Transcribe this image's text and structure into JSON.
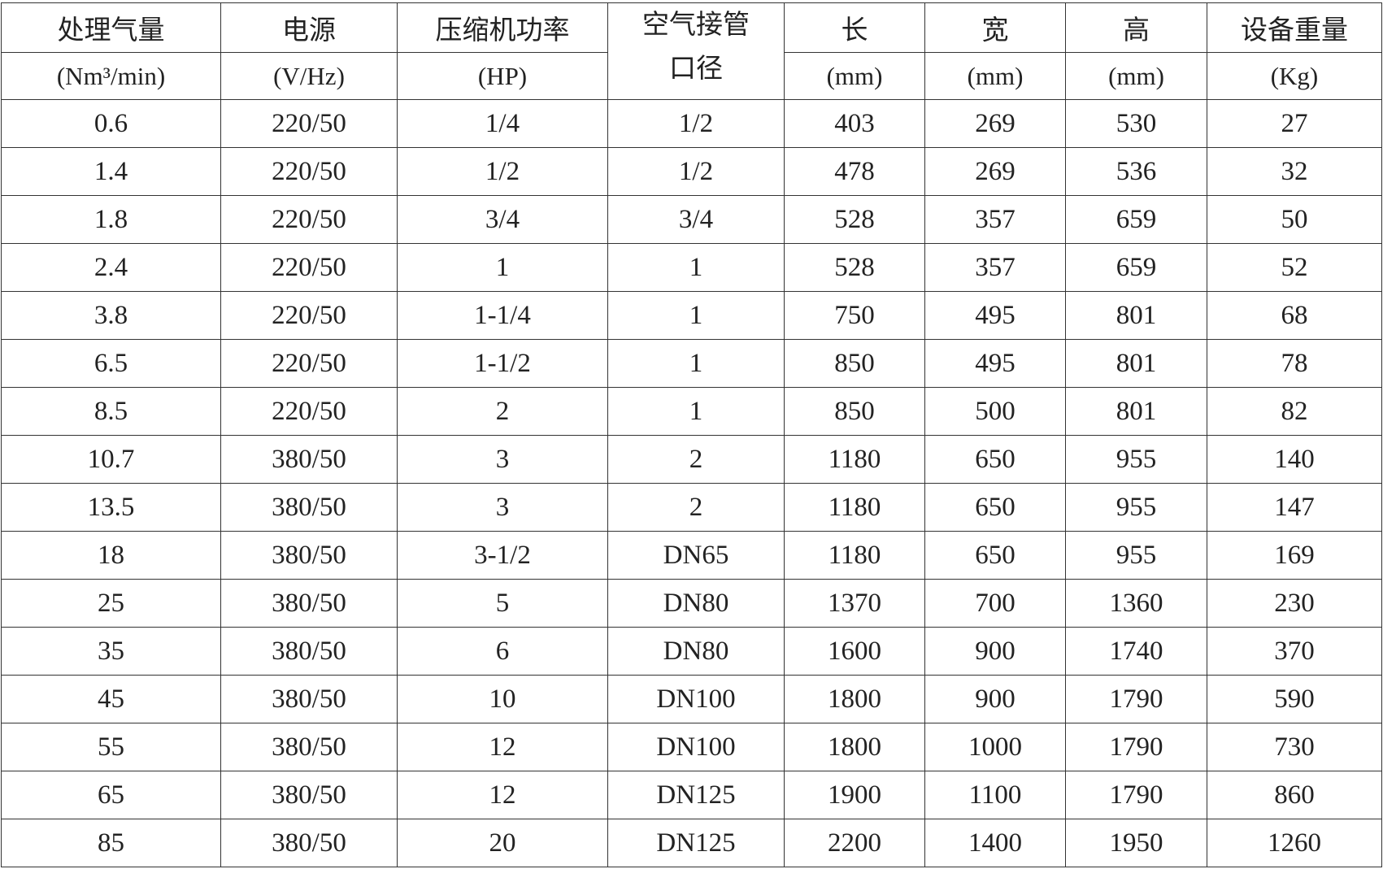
{
  "headers": [
    {
      "line1": "处理气量",
      "line2": "(Nm³/min)"
    },
    {
      "line1": "电源",
      "line2": "(V/Hz)"
    },
    {
      "line1": "压缩机功率",
      "line2": "(HP)"
    },
    {
      "line1": "空气接管",
      "line2": "口径"
    },
    {
      "line1": "长",
      "line2": "(mm)"
    },
    {
      "line1": "宽",
      "line2": "(mm)"
    },
    {
      "line1": "高",
      "line2": "(mm)"
    },
    {
      "line1": "设备重量",
      "line2": "(Kg)"
    }
  ],
  "rows": [
    [
      "0.6",
      "220/50",
      "1/4",
      "1/2",
      "403",
      "269",
      "530",
      "27"
    ],
    [
      "1.4",
      "220/50",
      "1/2",
      "1/2",
      "478",
      "269",
      "536",
      "32"
    ],
    [
      "1.8",
      "220/50",
      "3/4",
      "3/4",
      "528",
      "357",
      "659",
      "50"
    ],
    [
      "2.4",
      "220/50",
      "1",
      "1",
      "528",
      "357",
      "659",
      "52"
    ],
    [
      "3.8",
      "220/50",
      "1-1/4",
      "1",
      "750",
      "495",
      "801",
      "68"
    ],
    [
      "6.5",
      "220/50",
      "1-1/2",
      "1",
      "850",
      "495",
      "801",
      "78"
    ],
    [
      "8.5",
      "220/50",
      "2",
      "1",
      "850",
      "500",
      "801",
      "82"
    ],
    [
      "10.7",
      "380/50",
      "3",
      "2",
      "1180",
      "650",
      "955",
      "140"
    ],
    [
      "13.5",
      "380/50",
      "3",
      "2",
      "1180",
      "650",
      "955",
      "147"
    ],
    [
      "18",
      "380/50",
      "3-1/2",
      "DN65",
      "1180",
      "650",
      "955",
      "169"
    ],
    [
      "25",
      "380/50",
      "5",
      "DN80",
      "1370",
      "700",
      "1360",
      "230"
    ],
    [
      "35",
      "380/50",
      "6",
      "DN80",
      "1600",
      "900",
      "1740",
      "370"
    ],
    [
      "45",
      "380/50",
      "10",
      "DN100",
      "1800",
      "900",
      "1790",
      "590"
    ],
    [
      "55",
      "380/50",
      "12",
      "DN100",
      "1800",
      "1000",
      "1790",
      "730"
    ],
    [
      "65",
      "380/50",
      "12",
      "DN125",
      "1900",
      "1100",
      "1790",
      "860"
    ],
    [
      "85",
      "380/50",
      "20",
      "DN125",
      "2200",
      "1400",
      "1950",
      "1260"
    ]
  ]
}
